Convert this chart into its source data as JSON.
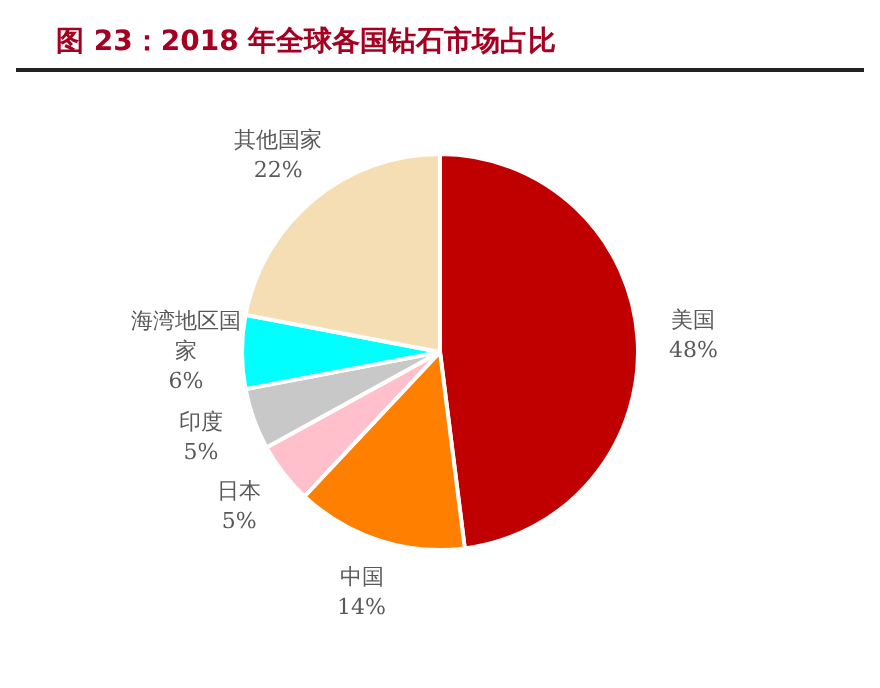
{
  "chart_data": {
    "type": "pie",
    "title": "图 23：2018 年全球各国钻石市场占比",
    "categories": [
      "美国",
      "中国",
      "日本",
      "印度",
      "海湾地区国家",
      "其他国家"
    ],
    "values": [
      48,
      14,
      5,
      5,
      6,
      22
    ],
    "colors": [
      "#c00000",
      "#ff8000",
      "#ffc0cb",
      "#c8c8c8",
      "#00ffff",
      "#f5deb3"
    ],
    "value_labels": [
      "48%",
      "14%",
      "5%",
      "5%",
      "6%",
      "22%"
    ],
    "legend": false
  }
}
